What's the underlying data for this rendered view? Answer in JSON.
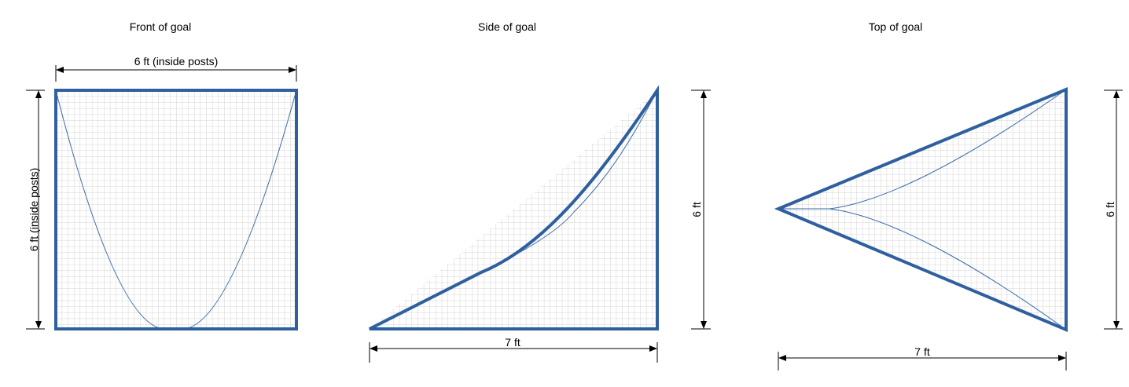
{
  "colors": {
    "frame": "#2e5f9e",
    "curve": "#3a6aa8",
    "grid": "#c8c8c8",
    "dimension": "#000000",
    "background": "#ffffff"
  },
  "views": {
    "front": {
      "title": "Front of goal",
      "width_label": "6 ft (inside posts)",
      "height_label": "6 ft (inside posts)"
    },
    "side": {
      "title": "Side of goal",
      "width_label": "7 ft",
      "height_label": "6 ft"
    },
    "top": {
      "title": "Top of goal",
      "width_label": "7 ft",
      "height_label": "6 ft"
    }
  }
}
